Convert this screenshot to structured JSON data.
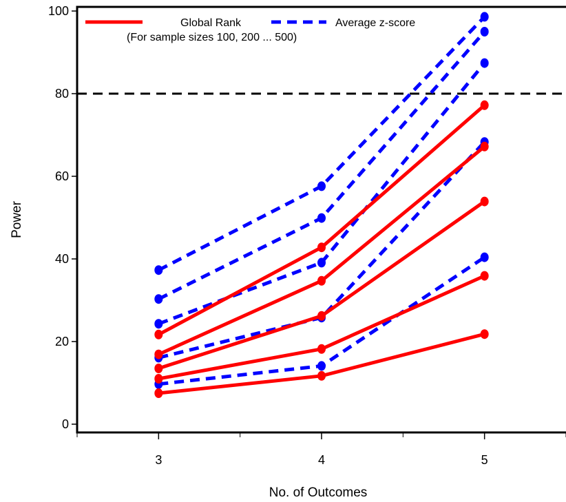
{
  "chart_data": {
    "type": "line",
    "xlabel": "No. of Outcomes",
    "ylabel": "Power",
    "x": [
      3,
      4,
      5
    ],
    "xlim": [
      2.5,
      5.5
    ],
    "ylim": [
      -2,
      101
    ],
    "yticks": [
      0,
      20,
      40,
      60,
      80,
      100
    ],
    "xticks": [
      3,
      4,
      5
    ],
    "reference_line": {
      "y": 80,
      "style": "dashed",
      "color": "#000000"
    },
    "legend": {
      "placement": "top-left",
      "entries": [
        {
          "label": "Global Rank",
          "color": "#ff0000",
          "style": "solid"
        },
        {
          "label": "Average z-score",
          "color": "#0000ff",
          "style": "dashed"
        }
      ],
      "note": "(For sample sizes 100, 200 ... 500)"
    },
    "series": [
      {
        "group": "global-rank",
        "color": "#ff0000",
        "style": "solid",
        "values": [
          7.5,
          11.7,
          21.8
        ]
      },
      {
        "group": "global-rank",
        "color": "#ff0000",
        "style": "solid",
        "values": [
          11.0,
          18.2,
          35.9
        ]
      },
      {
        "group": "global-rank",
        "color": "#ff0000",
        "style": "solid",
        "values": [
          13.5,
          26.2,
          53.9
        ]
      },
      {
        "group": "global-rank",
        "color": "#ff0000",
        "style": "solid",
        "values": [
          16.9,
          34.7,
          67.2
        ]
      },
      {
        "group": "global-rank",
        "color": "#ff0000",
        "style": "solid",
        "values": [
          21.7,
          42.8,
          77.2
        ]
      },
      {
        "group": "average-z-score",
        "color": "#0000ff",
        "style": "dashed",
        "values": [
          9.7,
          14.1,
          40.4
        ]
      },
      {
        "group": "average-z-score",
        "color": "#0000ff",
        "style": "dashed",
        "values": [
          16.1,
          25.8,
          68.3
        ]
      },
      {
        "group": "average-z-score",
        "color": "#0000ff",
        "style": "dashed",
        "values": [
          24.3,
          39.1,
          87.4
        ]
      },
      {
        "group": "average-z-score",
        "color": "#0000ff",
        "style": "dashed",
        "values": [
          30.3,
          49.9,
          95.0
        ]
      },
      {
        "group": "average-z-score",
        "color": "#0000ff",
        "style": "dashed",
        "values": [
          37.3,
          57.6,
          98.6
        ]
      }
    ]
  }
}
